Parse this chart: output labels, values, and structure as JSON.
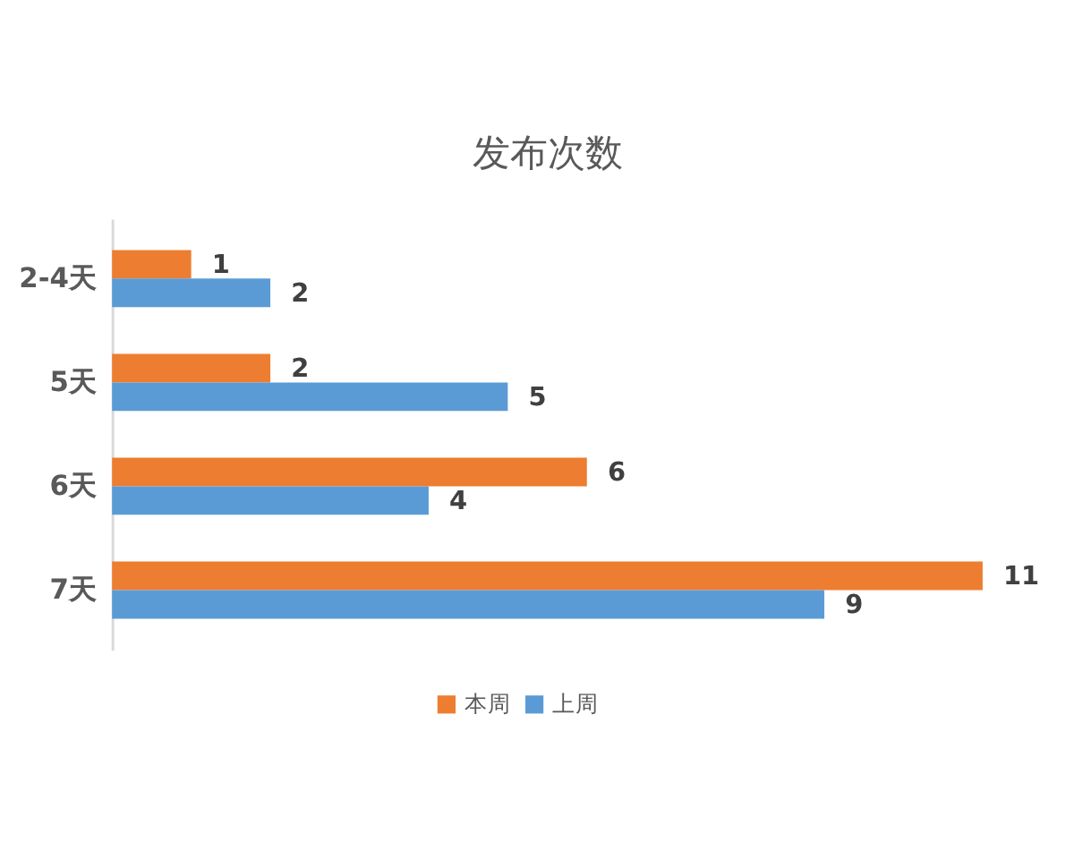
{
  "chart_data": {
    "type": "bar",
    "orientation": "horizontal",
    "title": "发布次数",
    "categories": [
      "2-4天",
      "5天",
      "6天",
      "7天"
    ],
    "series": [
      {
        "name": "本周",
        "color": "#ed7d31",
        "values": [
          1,
          2,
          6,
          11
        ]
      },
      {
        "name": "上周",
        "color": "#5b9bd5",
        "values": [
          2,
          5,
          4,
          9
        ]
      }
    ],
    "data_labels": true,
    "legend": "bottom",
    "tick_labels": "y"
  }
}
